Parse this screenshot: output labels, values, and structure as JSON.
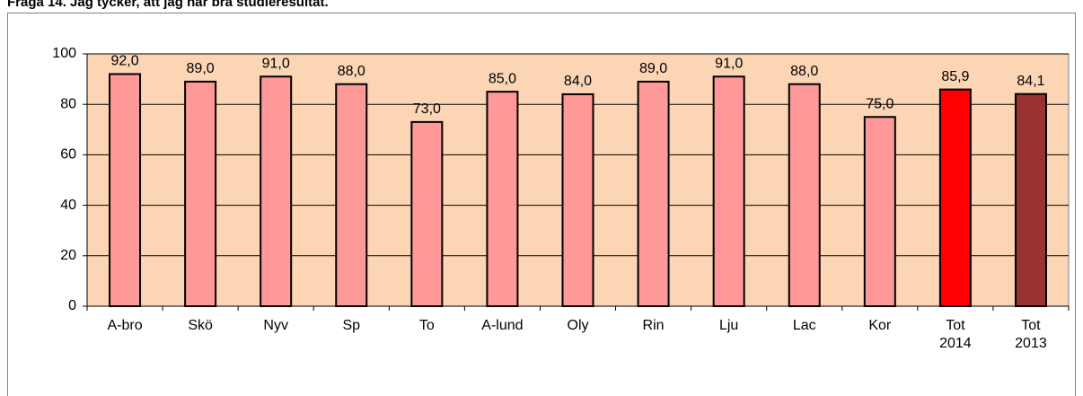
{
  "chart_data": {
    "type": "bar",
    "title": "Fråga 14. Jag tycker, att jag når bra studieresultat.",
    "categories": [
      "A-bro",
      "Skö",
      "Nyv",
      "Sp",
      "To",
      "A-lund",
      "Oly",
      "Rin",
      "Lju",
      "Lac",
      "Kor",
      "Tot\n2014",
      "Tot\n2013"
    ],
    "values": [
      92,
      89,
      91,
      88,
      73,
      85,
      84,
      89,
      91,
      88,
      75,
      85.9,
      84.1
    ],
    "value_labels": [
      "92,0",
      "89,0",
      "91,0",
      "88,0",
      "73,0",
      "85,0",
      "84,0",
      "89,0",
      "91,0",
      "88,0",
      "75,0",
      "85,9",
      "84,1"
    ],
    "colors": [
      "#ff9999",
      "#ff9999",
      "#ff9999",
      "#ff9999",
      "#ff9999",
      "#ff9999",
      "#ff9999",
      "#ff9999",
      "#ff9999",
      "#ff9999",
      "#ff9999",
      "#ff0000",
      "#993333"
    ],
    "ylim": [
      0,
      100
    ],
    "yticks": [
      0,
      20,
      40,
      60,
      80,
      100
    ],
    "grid": true
  }
}
